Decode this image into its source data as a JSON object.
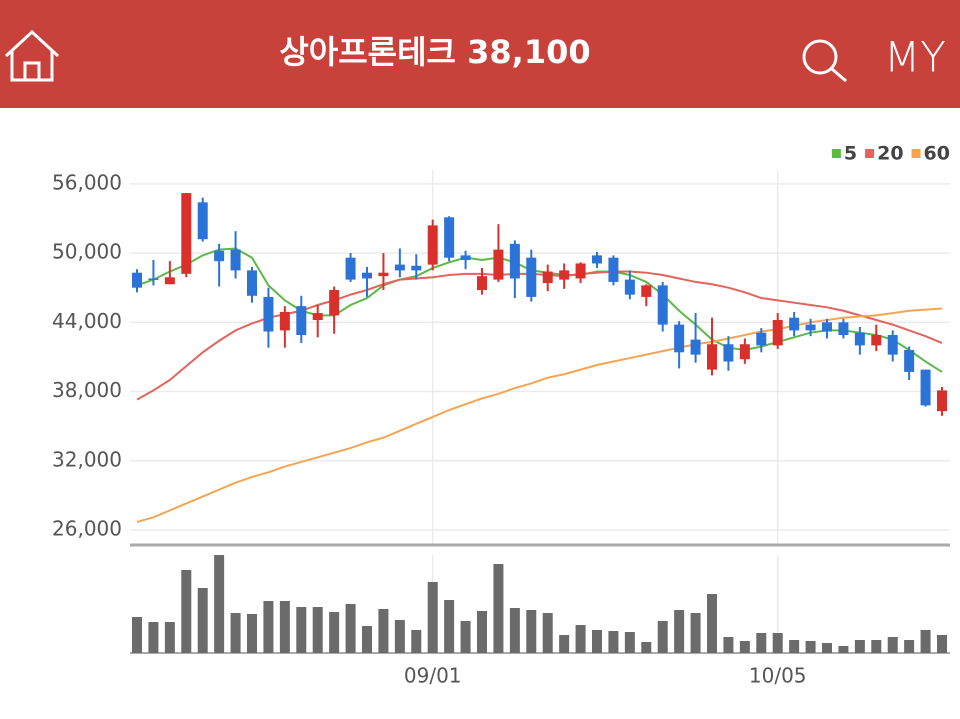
{
  "header": {
    "title": "상아프론테크 38,100",
    "my": "MY"
  },
  "chart_data": [
    {
      "type": "candlestick",
      "up_color": "#d9302c",
      "down_color": "#2b73d6",
      "legend": "top-right",
      "grid": true,
      "ylim": [
        24700,
        57200
      ],
      "yticks": [
        {
          "value": 26000,
          "label": "26,000"
        },
        {
          "value": 32000,
          "label": "32,000"
        },
        {
          "value": 38000,
          "label": "38,000"
        },
        {
          "value": 44000,
          "label": "44,000"
        },
        {
          "value": 50000,
          "label": "50,000"
        },
        {
          "value": 56000,
          "label": "56,000"
        }
      ],
      "open": [
        48300,
        47800,
        47300,
        48200,
        54400,
        50200,
        50300,
        48500,
        46200,
        43300,
        45400,
        44200,
        44600,
        49600,
        48300,
        48000,
        49000,
        48900,
        49000,
        53100,
        49800,
        46800,
        47700,
        50800,
        49600,
        47400,
        47700,
        47800,
        49800,
        49600,
        47700,
        46200,
        47200,
        43800,
        42500,
        39900,
        42100,
        40800,
        43100,
        42000,
        44400,
        43800,
        44000,
        44000,
        43100,
        42000,
        42900,
        41600,
        39900,
        36300
      ],
      "high": [
        48600,
        49400,
        49300,
        55200,
        54800,
        50800,
        51900,
        48800,
        47000,
        45400,
        46300,
        45500,
        47100,
        50000,
        48800,
        50000,
        50400,
        49900,
        52900,
        53200,
        50200,
        48700,
        52500,
        51100,
        50300,
        49000,
        49100,
        49200,
        50100,
        49800,
        48500,
        47300,
        47500,
        44100,
        44800,
        44400,
        42800,
        42600,
        43500,
        44800,
        44900,
        44300,
        44300,
        44300,
        43600,
        43800,
        43300,
        41900,
        39900,
        38400
      ],
      "low": [
        46600,
        47200,
        47300,
        47900,
        51000,
        47100,
        47800,
        45700,
        41800,
        41800,
        42200,
        42700,
        43000,
        47500,
        46200,
        46800,
        47900,
        47700,
        48500,
        49300,
        48600,
        46400,
        47500,
        46100,
        45800,
        46700,
        46900,
        47400,
        48700,
        47200,
        46000,
        45400,
        43200,
        40000,
        40500,
        39400,
        39800,
        40400,
        41400,
        41700,
        42800,
        42800,
        42600,
        42600,
        41200,
        41500,
        40600,
        39000,
        36700,
        35900
      ],
      "close": [
        47000,
        47700,
        47900,
        55200,
        51200,
        49300,
        48500,
        46300,
        43200,
        44900,
        42900,
        44800,
        46800,
        47700,
        47800,
        48300,
        48500,
        48500,
        52400,
        49600,
        49400,
        48000,
        50300,
        47800,
        46200,
        48400,
        48500,
        49100,
        49100,
        47500,
        46400,
        47200,
        43800,
        41400,
        41200,
        42100,
        40600,
        42100,
        42000,
        44200,
        43300,
        43300,
        43200,
        42900,
        42000,
        42900,
        41200,
        39700,
        36800,
        38100
      ],
      "series": [
        {
          "name": "5",
          "color": "#5cb947",
          "values": [
            47200,
            47700,
            48400,
            49000,
            49800,
            50300,
            50400,
            49600,
            47200,
            45900,
            45000,
            44600,
            44600,
            45500,
            46100,
            47200,
            47700,
            48000,
            48700,
            49200,
            49600,
            49400,
            49600,
            49200,
            48500,
            48300,
            48100,
            48100,
            48400,
            48400,
            48100,
            47500,
            46400,
            45000,
            43800,
            42500,
            41800,
            41600,
            41900,
            42300,
            42700,
            43100,
            43300,
            43300,
            43100,
            42900,
            42500,
            41600,
            40600,
            39700
          ]
        },
        {
          "name": "20",
          "color": "#e2645c",
          "values": [
            37300,
            38100,
            39000,
            40200,
            41400,
            42400,
            43300,
            43900,
            44400,
            44700,
            45000,
            45500,
            45900,
            46400,
            46800,
            47300,
            47700,
            47800,
            47900,
            48100,
            48200,
            48200,
            48100,
            48200,
            48200,
            48100,
            48000,
            48200,
            48300,
            48400,
            48400,
            48300,
            48100,
            47800,
            47500,
            47300,
            47000,
            46600,
            46100,
            45900,
            45700,
            45500,
            45300,
            45000,
            44600,
            44200,
            43800,
            43300,
            42800,
            42200
          ]
        },
        {
          "name": "60",
          "color": "#f2a553",
          "values": [
            26700,
            27100,
            27700,
            28300,
            28900,
            29500,
            30100,
            30600,
            31000,
            31500,
            31900,
            32300,
            32700,
            33100,
            33600,
            34000,
            34600,
            35200,
            35800,
            36400,
            36900,
            37400,
            37800,
            38300,
            38700,
            39200,
            39500,
            39900,
            40300,
            40600,
            40900,
            41200,
            41500,
            41800,
            42100,
            42300,
            42600,
            42900,
            43200,
            43400,
            43700,
            44000,
            44200,
            44400,
            44500,
            44600,
            44800,
            45000,
            45100,
            45200
          ]
        }
      ]
    },
    {
      "type": "bar",
      "color": "#6b6b6b",
      "categories": [
        null,
        null,
        null,
        null,
        null,
        null,
        null,
        null,
        null,
        null,
        null,
        null,
        null,
        null,
        null,
        null,
        null,
        null,
        "09/01",
        null,
        null,
        null,
        null,
        null,
        null,
        null,
        null,
        null,
        null,
        null,
        null,
        null,
        null,
        null,
        null,
        null,
        null,
        null,
        null,
        "10/05",
        null,
        null,
        null,
        null,
        null,
        null,
        null,
        null,
        null,
        null
      ],
      "values": [
        36,
        31,
        31,
        83,
        65,
        98,
        40,
        39,
        52,
        52,
        46,
        46,
        41,
        49,
        27,
        44,
        33,
        23,
        71,
        53,
        32,
        42,
        89,
        45,
        43,
        40,
        18,
        28,
        23,
        22,
        21,
        11,
        32,
        43,
        40,
        59,
        16,
        12,
        20,
        20,
        13,
        12,
        10,
        7,
        13,
        13,
        16,
        13,
        23,
        18
      ]
    }
  ]
}
